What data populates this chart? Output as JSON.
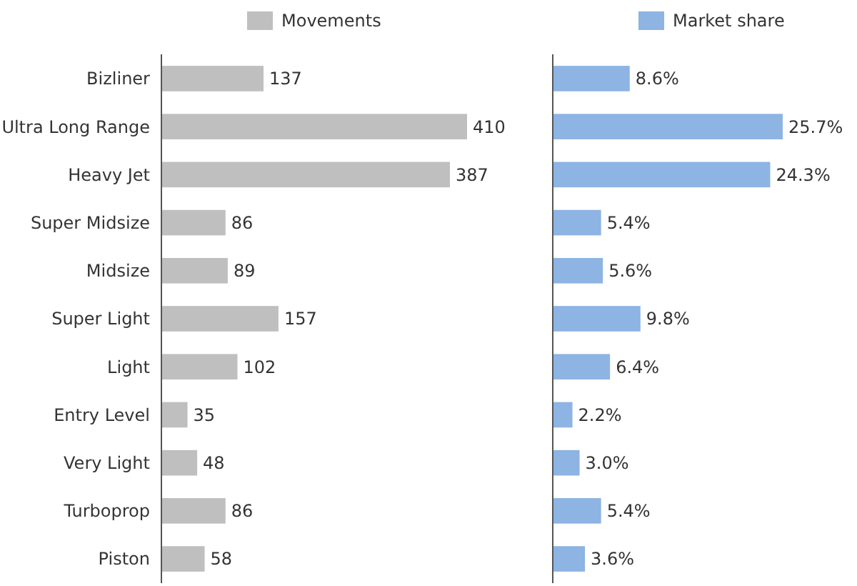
{
  "chart_data": [
    {
      "type": "bar",
      "orientation": "horizontal",
      "legend": "top",
      "data_labels": true,
      "categories": [
        "Bizliner",
        "Ultra Long Range",
        "Heavy Jet",
        "Super Midsize",
        "Midsize",
        "Super Light",
        "Light",
        "Entry Level",
        "Very Light",
        "Turboprop",
        "Piston"
      ],
      "series": [
        {
          "name": "Movements",
          "color": "#bfbfbf",
          "values": [
            137,
            410,
            387,
            86,
            89,
            157,
            102,
            35,
            48,
            86,
            58
          ]
        }
      ]
    },
    {
      "type": "bar",
      "orientation": "horizontal",
      "legend": "top",
      "categories": [
        null,
        null,
        null,
        null,
        null,
        null,
        null,
        null,
        null,
        null,
        null
      ],
      "series": [
        {
          "name": "Market share",
          "color": "#8db4e2",
          "values": [
            8.6,
            25.7,
            24.3,
            5.4,
            5.6,
            9.8,
            6.4,
            2.2,
            3.0,
            5.4,
            3.6
          ],
          "value_labels": [
            "8.6%",
            "25.7%",
            "24.3%",
            "5.4%",
            "5.6%",
            "9.8%",
            "6.4%",
            "2.2%",
            "3.0%",
            "5.4%",
            "3.6%"
          ]
        }
      ]
    }
  ]
}
